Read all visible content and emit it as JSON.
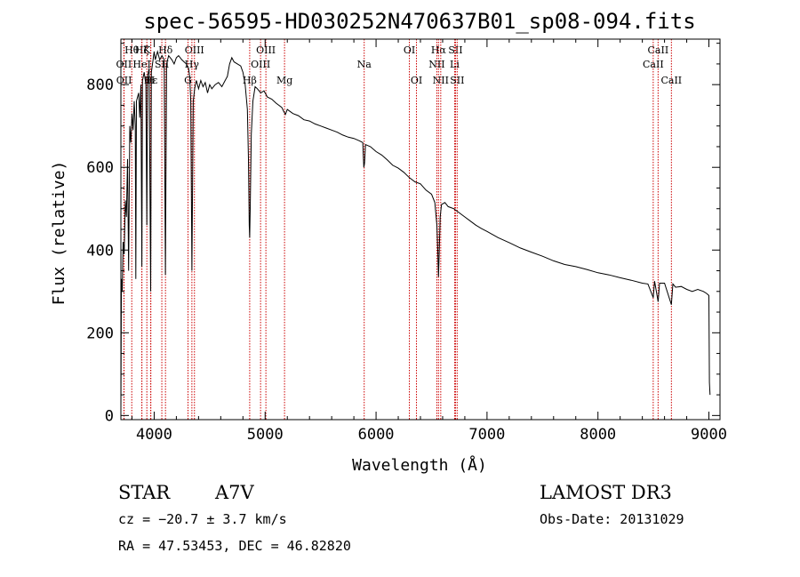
{
  "chart_data": {
    "type": "line",
    "title": "spec-56595-HD030252N470637B01_sp08-094.fits",
    "xlabel": "Wavelength (Å)",
    "ylabel": "Flux (relative)",
    "xlim": [
      3700,
      9100
    ],
    "ylim": [
      -10,
      910
    ],
    "xticks": [
      4000,
      5000,
      6000,
      7000,
      8000,
      9000
    ],
    "yticks": [
      0,
      200,
      400,
      600,
      800
    ],
    "series": [
      {
        "name": "spectrum",
        "points": [
          [
            3700,
            10
          ],
          [
            3705,
            330
          ],
          [
            3712,
            300
          ],
          [
            3720,
            420
          ],
          [
            3730,
            390
          ],
          [
            3740,
            520
          ],
          [
            3750,
            480
          ],
          [
            3760,
            620
          ],
          [
            3770,
            350
          ],
          [
            3780,
            700
          ],
          [
            3790,
            660
          ],
          [
            3800,
            730
          ],
          [
            3810,
            690
          ],
          [
            3820,
            760
          ],
          [
            3830,
            700
          ],
          [
            3835,
            330
          ],
          [
            3840,
            760
          ],
          [
            3860,
            780
          ],
          [
            3870,
            720
          ],
          [
            3880,
            800
          ],
          [
            3889,
            360
          ],
          [
            3895,
            810
          ],
          [
            3910,
            830
          ],
          [
            3925,
            800
          ],
          [
            3934,
            460
          ],
          [
            3940,
            820
          ],
          [
            3955,
            840
          ],
          [
            3968,
            300
          ],
          [
            3975,
            830
          ],
          [
            3990,
            860
          ],
          [
            4000,
            880
          ],
          [
            4010,
            860
          ],
          [
            4030,
            880
          ],
          [
            4050,
            860
          ],
          [
            4070,
            870
          ],
          [
            4090,
            860
          ],
          [
            4101,
            340
          ],
          [
            4112,
            850
          ],
          [
            4130,
            870
          ],
          [
            4160,
            860
          ],
          [
            4180,
            850
          ],
          [
            4200,
            865
          ],
          [
            4220,
            870
          ],
          [
            4250,
            860
          ],
          [
            4270,
            855
          ],
          [
            4290,
            850
          ],
          [
            4310,
            840
          ],
          [
            4320,
            820
          ],
          [
            4330,
            760
          ],
          [
            4340,
            350
          ],
          [
            4352,
            760
          ],
          [
            4365,
            790
          ],
          [
            4380,
            810
          ],
          [
            4400,
            790
          ],
          [
            4420,
            810
          ],
          [
            4440,
            795
          ],
          [
            4460,
            805
          ],
          [
            4481,
            780
          ],
          [
            4500,
            800
          ],
          [
            4520,
            790
          ],
          [
            4550,
            800
          ],
          [
            4580,
            805
          ],
          [
            4610,
            795
          ],
          [
            4640,
            810
          ],
          [
            4660,
            820
          ],
          [
            4680,
            850
          ],
          [
            4700,
            865
          ],
          [
            4720,
            855
          ],
          [
            4750,
            850
          ],
          [
            4780,
            845
          ],
          [
            4800,
            830
          ],
          [
            4820,
            800
          ],
          [
            4840,
            740
          ],
          [
            4850,
            620
          ],
          [
            4857,
            460
          ],
          [
            4861,
            430
          ],
          [
            4866,
            500
          ],
          [
            4875,
            680
          ],
          [
            4890,
            760
          ],
          [
            4910,
            795
          ],
          [
            4930,
            790
          ],
          [
            4960,
            780
          ],
          [
            4990,
            785
          ],
          [
            5020,
            770
          ],
          [
            5060,
            765
          ],
          [
            5100,
            755
          ],
          [
            5150,
            745
          ],
          [
            5168,
            735
          ],
          [
            5183,
            728
          ],
          [
            5200,
            740
          ],
          [
            5250,
            730
          ],
          [
            5300,
            725
          ],
          [
            5350,
            715
          ],
          [
            5400,
            712
          ],
          [
            5450,
            705
          ],
          [
            5500,
            700
          ],
          [
            5550,
            695
          ],
          [
            5600,
            690
          ],
          [
            5650,
            685
          ],
          [
            5700,
            678
          ],
          [
            5750,
            673
          ],
          [
            5800,
            670
          ],
          [
            5850,
            664
          ],
          [
            5880,
            660
          ],
          [
            5890,
            600
          ],
          [
            5896,
            610
          ],
          [
            5905,
            655
          ],
          [
            5950,
            650
          ],
          [
            6000,
            638
          ],
          [
            6050,
            630
          ],
          [
            6100,
            618
          ],
          [
            6150,
            605
          ],
          [
            6200,
            598
          ],
          [
            6250,
            588
          ],
          [
            6300,
            575
          ],
          [
            6350,
            565
          ],
          [
            6400,
            560
          ],
          [
            6450,
            545
          ],
          [
            6500,
            535
          ],
          [
            6530,
            515
          ],
          [
            6548,
            460
          ],
          [
            6556,
            400
          ],
          [
            6563,
            335
          ],
          [
            6570,
            400
          ],
          [
            6578,
            480
          ],
          [
            6590,
            510
          ],
          [
            6620,
            515
          ],
          [
            6650,
            505
          ],
          [
            6700,
            500
          ],
          [
            6750,
            490
          ],
          [
            6800,
            480
          ],
          [
            6850,
            470
          ],
          [
            6900,
            460
          ],
          [
            6950,
            452
          ],
          [
            7000,
            445
          ],
          [
            7100,
            430
          ],
          [
            7200,
            418
          ],
          [
            7300,
            405
          ],
          [
            7400,
            395
          ],
          [
            7500,
            385
          ],
          [
            7600,
            374
          ],
          [
            7700,
            365
          ],
          [
            7800,
            360
          ],
          [
            7900,
            353
          ],
          [
            8000,
            345
          ],
          [
            8100,
            340
          ],
          [
            8200,
            333
          ],
          [
            8300,
            327
          ],
          [
            8400,
            320
          ],
          [
            8450,
            318
          ],
          [
            8498,
            285
          ],
          [
            8510,
            325
          ],
          [
            8542,
            275
          ],
          [
            8555,
            320
          ],
          [
            8600,
            320
          ],
          [
            8662,
            268
          ],
          [
            8675,
            318
          ],
          [
            8700,
            310
          ],
          [
            8750,
            312
          ],
          [
            8800,
            305
          ],
          [
            8850,
            300
          ],
          [
            8900,
            305
          ],
          [
            8950,
            300
          ],
          [
            8980,
            295
          ],
          [
            9000,
            290
          ],
          [
            9005,
            80
          ],
          [
            9010,
            50
          ]
        ]
      }
    ],
    "lines": [
      {
        "label": "Hθ",
        "wl": 3798,
        "row": 0
      },
      {
        "label": "OII",
        "wl": 3727,
        "row": 1
      },
      {
        "label": "OII",
        "wl": 3729,
        "row": 2
      },
      {
        "label": "Hζ",
        "wl": 3889,
        "row": 0
      },
      {
        "label": "HeI",
        "wl": 3889,
        "row": 1
      },
      {
        "label": "Hε",
        "wl": 3970,
        "row": 2
      },
      {
        "label": "K",
        "wl": 3934,
        "row": 0
      },
      {
        "label": "H",
        "wl": 3968,
        "row": 2
      },
      {
        "label": "SII",
        "wl": 4069,
        "row": 1
      },
      {
        "label": "Hδ",
        "wl": 4102,
        "row": 0
      },
      {
        "label": "OIII",
        "wl": 4363,
        "row": 0
      },
      {
        "label": "Hγ",
        "wl": 4340,
        "row": 1
      },
      {
        "label": "G",
        "wl": 4305,
        "row": 2
      },
      {
        "label": "OIII",
        "wl": 5007,
        "row": 0
      },
      {
        "label": "OIII",
        "wl": 4959,
        "row": 1
      },
      {
        "label": "Hβ",
        "wl": 4861,
        "row": 2
      },
      {
        "label": "Mg",
        "wl": 5175,
        "row": 2
      },
      {
        "label": "Na",
        "wl": 5893,
        "row": 1
      },
      {
        "label": "OI",
        "wl": 6300,
        "row": 0
      },
      {
        "label": "OI",
        "wl": 6364,
        "row": 2
      },
      {
        "label": "Hα",
        "wl": 6563,
        "row": 0
      },
      {
        "label": "NII",
        "wl": 6548,
        "row": 1
      },
      {
        "label": "NII",
        "wl": 6583,
        "row": 2
      },
      {
        "label": "SII",
        "wl": 6716,
        "row": 0
      },
      {
        "label": "Li",
        "wl": 6708,
        "row": 1
      },
      {
        "label": "SII",
        "wl": 6731,
        "row": 2
      },
      {
        "label": "CaII",
        "wl": 8542,
        "row": 0
      },
      {
        "label": "CaII",
        "wl": 8498,
        "row": 1
      },
      {
        "label": "CaII",
        "wl": 8662,
        "row": 2
      }
    ],
    "info": {
      "object": "STAR",
      "subclass": "A7V",
      "survey": "LAMOST DR3",
      "cz": "cz = −20.7 ± 3.7 km/s",
      "obs_date": "Obs-Date: 20131029",
      "coords": "RA =  47.53453, DEC =  46.82820"
    },
    "colors": {
      "line_markers": "#cc0000",
      "spectrum": "#000000",
      "axes": "#000000"
    }
  }
}
